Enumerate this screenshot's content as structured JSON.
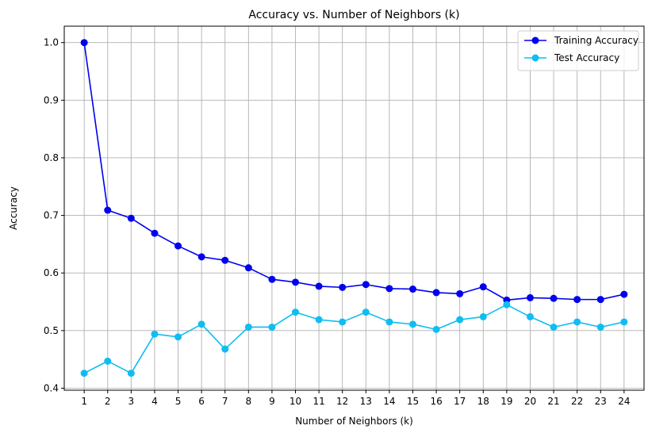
{
  "chart_data": {
    "type": "line",
    "title": "Accuracy vs. Number of Neighbors (k)",
    "xlabel": "Number of Neighbors (k)",
    "ylabel": "Accuracy",
    "x": [
      1,
      2,
      3,
      4,
      5,
      6,
      7,
      8,
      9,
      10,
      11,
      12,
      13,
      14,
      15,
      16,
      17,
      18,
      19,
      20,
      21,
      22,
      23,
      24
    ],
    "x_ticks": [
      "1",
      "2",
      "3",
      "4",
      "5",
      "6",
      "7",
      "8",
      "9",
      "10",
      "11",
      "12",
      "13",
      "14",
      "15",
      "16",
      "17",
      "18",
      "19",
      "20",
      "21",
      "22",
      "23",
      "24"
    ],
    "xlim": [
      0.15,
      24.85
    ],
    "ylim": [
      0.3965,
      1.0285
    ],
    "y_ticks": [
      0.4,
      0.5,
      0.6,
      0.7,
      0.8,
      0.9,
      1.0
    ],
    "y_tick_labels": [
      "0.4",
      "0.5",
      "0.6",
      "0.7",
      "0.8",
      "0.9",
      "1.0"
    ],
    "grid": true,
    "legend_position": "top-right",
    "marker": "circle",
    "series": [
      {
        "name": "Training Accuracy",
        "color": "#0000ee",
        "values": [
          1.0,
          0.709,
          0.695,
          0.669,
          0.647,
          0.628,
          0.622,
          0.609,
          0.589,
          0.584,
          0.577,
          0.575,
          0.58,
          0.573,
          0.572,
          0.566,
          0.564,
          0.576,
          0.553,
          0.557,
          0.556,
          0.554,
          0.554,
          0.563
        ]
      },
      {
        "name": "Test Accuracy",
        "color": "#0fbdf2",
        "values": [
          0.426,
          0.447,
          0.426,
          0.494,
          0.489,
          0.511,
          0.468,
          0.506,
          0.506,
          0.532,
          0.519,
          0.515,
          0.532,
          0.515,
          0.511,
          0.502,
          0.519,
          0.524,
          0.545,
          0.524,
          0.506,
          0.515,
          0.506,
          0.515
        ]
      }
    ]
  }
}
